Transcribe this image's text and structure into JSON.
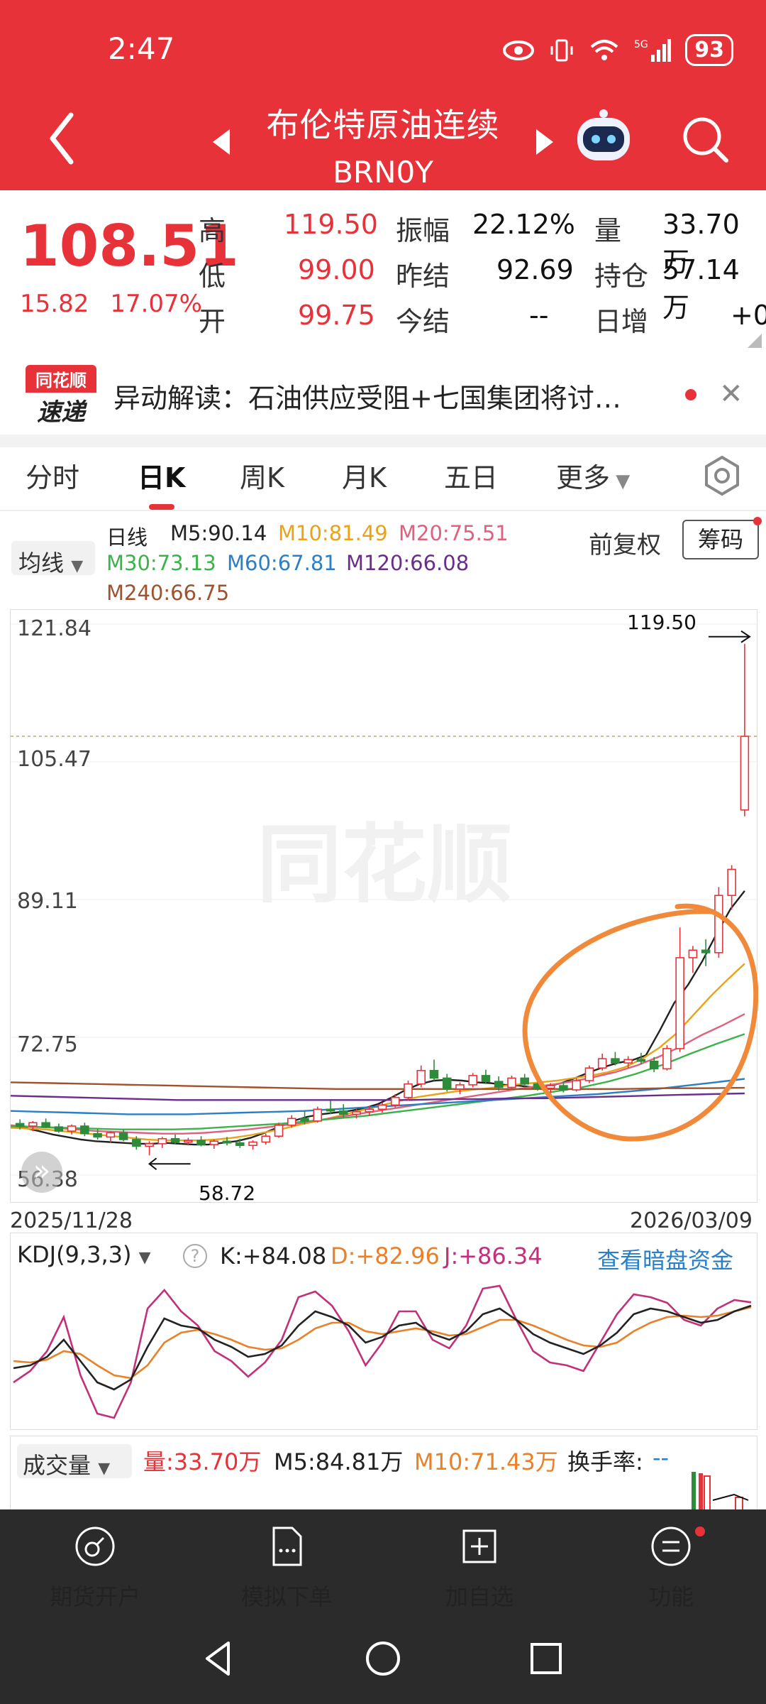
{
  "status": {
    "time": "2:47",
    "battery": "93",
    "network": "5G"
  },
  "header": {
    "title": "布伦特原油连续",
    "code": "BRN0Y"
  },
  "quote": {
    "price": "108.51",
    "change": "15.82",
    "change_pct": "17.07%",
    "rows": [
      {
        "l1": "高",
        "v1": "119.50",
        "l2": "振幅",
        "v2": "22.12%",
        "l3": "量",
        "v3": "33.70万"
      },
      {
        "l1": "低",
        "v1": "99.00",
        "l2": "昨结",
        "v2": "92.69",
        "l3": "持仓",
        "v3": "57.14万"
      },
      {
        "l1": "开",
        "v1": "99.75",
        "l2": "今结",
        "v2": "--",
        "l3": "日增",
        "v3": "+0"
      }
    ]
  },
  "news": {
    "logo_top": "同花顺",
    "logo_bottom": "速递",
    "text": "异动解读：石油供应受阻+七国集团将讨…"
  },
  "tabs": [
    "分时",
    "日K",
    "周K",
    "月K",
    "五日",
    "更多"
  ],
  "chart_header": {
    "ma_select": "均线",
    "period": "日线",
    "ma": [
      {
        "label": "M5:90.14",
        "color": "#222222"
      },
      {
        "label": "M10:81.49",
        "color": "#e8a317"
      },
      {
        "label": "M20:75.51",
        "color": "#e0607e"
      },
      {
        "label": "M30:73.13",
        "color": "#3bb34a"
      },
      {
        "label": "M60:67.81",
        "color": "#2b7fc7"
      },
      {
        "label": "M120:66.08",
        "color": "#6b2d8c"
      },
      {
        "label": "M240:66.75",
        "color": "#a0522d"
      }
    ],
    "fuquan": "前复权",
    "chouma": "筹码"
  },
  "kchart": {
    "y_labels": [
      "121.84",
      "105.47",
      "89.11",
      "72.75",
      "56.38"
    ],
    "high_label": "119.50",
    "low_label": "58.72",
    "start_date": "2025/11/28",
    "end_date": "2026/03/09",
    "watermark": "同花顺"
  },
  "chart_data": {
    "type": "candlestick",
    "ylim": [
      56.38,
      121.84
    ],
    "x_range": [
      "2025/11/28",
      "2026/03/09"
    ],
    "ohlc": [
      [
        62.5,
        63.0,
        61.8,
        62.2
      ],
      [
        62.2,
        62.8,
        61.6,
        62.6
      ],
      [
        62.6,
        63.1,
        62.0,
        62.1
      ],
      [
        62.1,
        62.5,
        61.4,
        61.6
      ],
      [
        61.6,
        62.4,
        61.2,
        62.2
      ],
      [
        62.2,
        62.6,
        61.0,
        61.3
      ],
      [
        61.3,
        61.9,
        60.6,
        60.9
      ],
      [
        60.9,
        61.6,
        60.2,
        61.4
      ],
      [
        61.4,
        61.8,
        60.4,
        60.6
      ],
      [
        60.6,
        61.0,
        59.4,
        59.8
      ],
      [
        59.8,
        60.4,
        58.72,
        60.1
      ],
      [
        60.1,
        60.9,
        59.6,
        60.7
      ],
      [
        60.7,
        61.2,
        60.0,
        60.3
      ],
      [
        60.3,
        60.8,
        59.9,
        60.5
      ],
      [
        60.5,
        61.0,
        59.8,
        60.0
      ],
      [
        60.0,
        60.6,
        59.5,
        60.4
      ],
      [
        60.4,
        60.9,
        59.9,
        60.2
      ],
      [
        60.2,
        60.7,
        59.6,
        59.9
      ],
      [
        59.9,
        60.5,
        59.4,
        60.3
      ],
      [
        60.3,
        61.3,
        60.0,
        61.0
      ],
      [
        61.0,
        62.6,
        60.8,
        62.3
      ],
      [
        62.3,
        63.5,
        62.0,
        63.1
      ],
      [
        63.1,
        64.0,
        62.4,
        62.8
      ],
      [
        62.8,
        64.5,
        62.6,
        64.2
      ],
      [
        64.2,
        65.2,
        63.6,
        64.0
      ],
      [
        64.0,
        64.8,
        63.2,
        63.6
      ],
      [
        63.6,
        64.3,
        63.1,
        63.9
      ],
      [
        63.9,
        64.6,
        63.4,
        64.2
      ],
      [
        64.2,
        65.0,
        63.8,
        64.7
      ],
      [
        64.7,
        66.0,
        64.4,
        65.6
      ],
      [
        65.6,
        67.6,
        65.2,
        67.2
      ],
      [
        67.2,
        69.4,
        66.8,
        68.8
      ],
      [
        68.8,
        70.1,
        67.6,
        67.9
      ],
      [
        67.9,
        68.4,
        66.3,
        66.6
      ],
      [
        66.6,
        67.4,
        66.0,
        67.1
      ],
      [
        67.1,
        68.5,
        66.8,
        68.2
      ],
      [
        68.2,
        68.9,
        67.2,
        67.5
      ],
      [
        67.5,
        68.1,
        66.4,
        66.8
      ],
      [
        66.8,
        68.2,
        66.5,
        67.9
      ],
      [
        67.9,
        68.4,
        66.9,
        67.2
      ],
      [
        67.2,
        67.8,
        66.4,
        66.7
      ],
      [
        66.7,
        67.3,
        66.1,
        67.0
      ],
      [
        67.0,
        67.5,
        66.2,
        66.5
      ],
      [
        66.5,
        67.9,
        66.3,
        67.6
      ],
      [
        67.6,
        69.4,
        67.3,
        69.1
      ],
      [
        69.1,
        70.8,
        68.8,
        70.2
      ],
      [
        70.2,
        71.0,
        69.4,
        69.7
      ],
      [
        69.7,
        70.5,
        69.1,
        70.1
      ],
      [
        70.1,
        70.9,
        69.5,
        69.9
      ],
      [
        69.9,
        70.4,
        68.6,
        69.0
      ],
      [
        69.0,
        71.8,
        68.8,
        71.4
      ],
      [
        71.4,
        85.8,
        71.0,
        82.2
      ],
      [
        82.2,
        83.6,
        80.4,
        83.1
      ],
      [
        83.1,
        84.4,
        81.2,
        82.8
      ],
      [
        82.8,
        90.6,
        82.2,
        89.6
      ],
      [
        89.6,
        93.2,
        87.9,
        92.7
      ],
      [
        99.75,
        119.5,
        99.0,
        108.51
      ]
    ],
    "ma": {
      "M5": [
        62.2,
        62.0,
        61.6,
        61.2,
        60.9,
        60.6,
        60.4,
        60.3,
        60.2,
        60.1,
        60.1,
        60.2,
        60.1,
        60.0,
        60.0,
        60.2,
        60.4,
        60.8,
        61.4,
        62.1,
        62.8,
        63.3,
        63.6,
        63.8,
        64.0,
        64.3,
        64.8,
        65.6,
        66.5,
        67.2,
        67.6,
        67.7,
        67.6,
        67.4,
        67.3,
        67.1,
        67.0,
        66.8,
        66.9,
        67.3,
        67.9,
        68.6,
        69.2,
        69.7,
        70.0,
        70.6,
        73.6,
        76.8,
        79.0,
        81.8,
        85.0,
        88.0,
        90.14
      ],
      "M10": [
        62.0,
        61.9,
        61.8,
        61.6,
        61.4,
        61.2,
        61.0,
        60.8,
        60.6,
        60.5,
        60.5,
        60.5,
        60.6,
        60.8,
        61.1,
        61.5,
        61.9,
        62.4,
        62.8,
        63.3,
        63.8,
        64.3,
        64.8,
        65.3,
        65.7,
        66.0,
        66.3,
        66.5,
        66.7,
        67.0,
        67.2,
        67.4,
        67.6,
        67.9,
        68.2,
        68.6,
        69.2,
        70.2,
        71.5,
        73.2,
        75.4,
        77.6,
        79.6,
        81.49
      ],
      "M20": [
        62.3,
        62.1,
        62.0,
        61.8,
        61.6,
        61.5,
        61.4,
        61.3,
        61.3,
        61.4,
        61.6,
        61.8,
        62.1,
        62.4,
        62.8,
        63.2,
        63.6,
        64.0,
        64.4,
        64.8,
        65.2,
        65.6,
        66.0,
        66.4,
        66.8,
        67.1,
        67.5,
        68.0,
        68.6,
        69.4,
        70.4,
        71.6,
        73.0,
        74.2,
        75.51
      ],
      "M30": [
        62.2,
        62.1,
        62.0,
        61.9,
        61.8,
        61.8,
        61.8,
        61.9,
        62.1,
        62.3,
        62.5,
        62.8,
        63.1,
        63.4,
        63.8,
        64.2,
        64.6,
        65.0,
        65.4,
        65.8,
        66.3,
        66.8,
        67.5,
        68.4,
        69.5,
        70.8,
        72.0,
        73.13
      ],
      "M60": [
        64.0,
        63.9,
        63.8,
        63.7,
        63.6,
        63.6,
        63.6,
        63.7,
        63.8,
        63.9,
        64.0,
        64.2,
        64.4,
        64.6,
        64.8,
        65.0,
        65.2,
        65.4,
        65.6,
        65.8,
        66.0,
        66.3,
        66.6,
        67.0,
        67.4,
        67.81
      ],
      "M120": [
        65.8,
        65.7,
        65.6,
        65.5,
        65.4,
        65.3,
        65.3,
        65.3,
        65.3,
        65.3,
        65.3,
        65.3,
        65.3,
        65.4,
        65.4,
        65.5,
        65.5,
        65.6,
        65.7,
        65.8,
        65.9,
        66.0,
        66.08
      ],
      "M240": [
        67.4,
        67.3,
        67.2,
        67.1,
        67.0,
        66.9,
        66.8,
        66.7,
        66.6,
        66.6,
        66.6,
        66.6,
        66.6,
        66.6,
        66.6,
        66.6,
        66.7,
        66.7,
        66.75
      ]
    }
  },
  "kdj": {
    "selector": "KDJ(9,3,3)",
    "k": "K:+84.08",
    "d": "D:+82.96",
    "j": "J:+86.34",
    "link": "查看暗盘资金",
    "values_k": [
      40,
      42,
      48,
      60,
      45,
      30,
      25,
      32,
      55,
      75,
      70,
      68,
      60,
      55,
      48,
      50,
      56,
      70,
      80,
      76,
      70,
      58,
      62,
      70,
      72,
      64,
      60,
      66,
      78,
      82,
      74,
      64,
      58,
      54,
      50,
      56,
      65,
      78,
      82,
      80,
      76,
      72,
      74,
      80,
      84
    ],
    "values_d": [
      45,
      44,
      46,
      52,
      50,
      42,
      35,
      33,
      42,
      58,
      65,
      67,
      64,
      60,
      55,
      53,
      54,
      60,
      68,
      72,
      72,
      66,
      64,
      66,
      68,
      66,
      63,
      64,
      69,
      74,
      74,
      70,
      65,
      60,
      56,
      55,
      58,
      66,
      72,
      76,
      77,
      76,
      77,
      80,
      82.96
    ],
    "values_j": [
      30,
      38,
      52,
      76,
      35,
      8,
      5,
      30,
      82,
      95,
      80,
      70,
      52,
      45,
      34,
      44,
      60,
      90,
      94,
      84,
      66,
      42,
      58,
      80,
      80,
      60,
      54,
      70,
      96,
      98,
      74,
      52,
      44,
      42,
      38,
      58,
      78,
      92,
      90,
      86,
      74,
      70,
      82,
      88,
      86.34
    ]
  },
  "volume": {
    "selector": "成交量",
    "vol": "量:33.70万",
    "m5": "M5:84.81万",
    "m10": "M10:71.43万",
    "turnover": "换手率:",
    "turnover_val": "--"
  },
  "bottom_nav": [
    "期货开户",
    "模拟下单",
    "加自选",
    "功能"
  ]
}
